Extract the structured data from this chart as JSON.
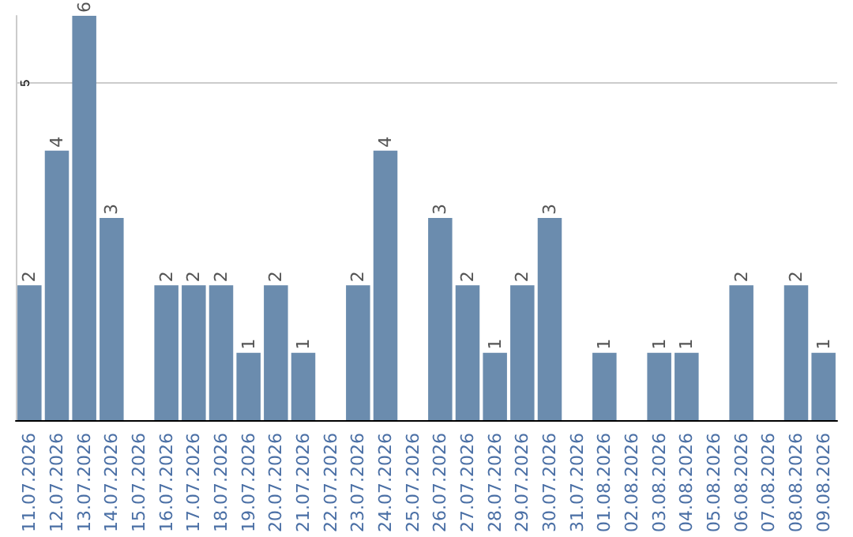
{
  "chart_data": {
    "type": "bar",
    "categories": [
      "11.07.2026",
      "12.07.2026",
      "13.07.2026",
      "14.07.2026",
      "15.07.2026",
      "16.07.2026",
      "17.07.2026",
      "18.07.2026",
      "19.07.2026",
      "20.07.2026",
      "21.07.2026",
      "22.07.2026",
      "23.07.2026",
      "24.07.2026",
      "25.07.2026",
      "26.07.2026",
      "27.07.2026",
      "28.07.2026",
      "29.07.2026",
      "30.07.2026",
      "31.07.2026",
      "01.08.2026",
      "02.08.2026",
      "03.08.2026",
      "04.08.2026",
      "05.08.2026",
      "06.08.2026",
      "07.08.2026",
      "08.08.2026",
      "09.08.2026"
    ],
    "values": [
      2,
      4,
      6,
      3,
      null,
      2,
      2,
      2,
      1,
      2,
      1,
      null,
      2,
      4,
      null,
      3,
      2,
      1,
      2,
      3,
      null,
      1,
      null,
      1,
      1,
      null,
      2,
      null,
      2,
      1
    ],
    "color": "#6b8cae",
    "ylim": [
      0,
      6
    ],
    "yticks": [
      5
    ],
    "grid": "y",
    "data_labels": true
  }
}
